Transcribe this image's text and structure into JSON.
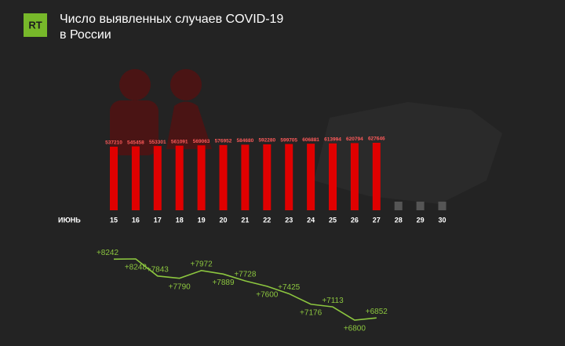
{
  "logo": "RT",
  "title_lines": [
    "Число выявленных случаев COVID-19",
    "в России"
  ],
  "chart_data": [
    {
      "type": "bar",
      "x_label": "ИЮНЬ",
      "color": "#e00000",
      "label_color": "#ff5a5a",
      "categories": [
        "15",
        "16",
        "17",
        "18",
        "19",
        "20",
        "21",
        "22",
        "23",
        "24",
        "25",
        "26",
        "27",
        "28",
        "29",
        "30"
      ],
      "values": [
        537210,
        545458,
        553301,
        561091,
        569063,
        576952,
        584680,
        592280,
        599705,
        606881,
        613994,
        620794,
        627646,
        null,
        null,
        null
      ]
    },
    {
      "type": "line",
      "color": "#8cc63f",
      "values": [
        8242,
        8248,
        7843,
        7790,
        7972,
        7889,
        7728,
        7600,
        7425,
        7176,
        7113,
        6800,
        6852
      ],
      "value_labels": [
        "+8242",
        "+8248",
        "+7843",
        "+7790",
        "+7972",
        "+7889",
        "+7728",
        "+7600",
        "+7425",
        "+7176",
        "+7113",
        "+6800",
        "+6852"
      ]
    }
  ]
}
